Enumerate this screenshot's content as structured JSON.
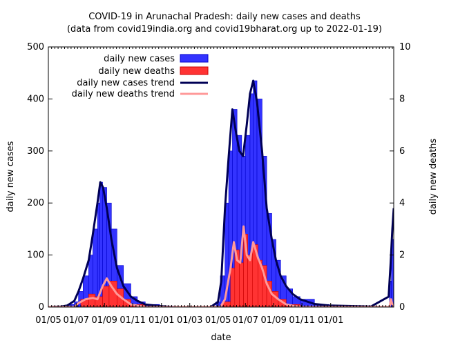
{
  "chart_data": {
    "type": "bar",
    "title": "COVID-19 in Arunachal Pradesh: daily new cases and deaths",
    "subtitle": "(data from covid19india.org and covid19bharat.org up to 2022-01-19)",
    "xlabel": "date",
    "ylabel": "daily new cases",
    "y2label": "daily new deaths",
    "ylim": [
      0,
      500
    ],
    "y2lim": [
      0,
      10
    ],
    "xlim": [
      "2020-01-05",
      "2022-01-19"
    ],
    "yticks": [
      "0",
      "100",
      "200",
      "300",
      "400",
      "500"
    ],
    "y2ticks": [
      "0",
      "2",
      "4",
      "6",
      "8",
      "10"
    ],
    "xticks": [
      {
        "date": "2020-01-05",
        "label": "01/05"
      },
      {
        "date": "2020-03-05",
        "label": "01/07"
      },
      {
        "date": "2020-05-05",
        "label": "01/09"
      },
      {
        "date": "2020-07-05",
        "label": "01/11"
      },
      {
        "date": "2020-09-05",
        "label": "01/01"
      },
      {
        "date": "2020-11-05",
        "label": "01/03"
      },
      {
        "date": "2021-01-05",
        "label": "01/05"
      },
      {
        "date": "2021-03-05",
        "label": "01/07"
      },
      {
        "date": "2021-05-05",
        "label": "01/09"
      },
      {
        "date": "2021-07-05",
        "label": "01/11"
      },
      {
        "date": "2021-09-05",
        "label": "01/01"
      }
    ],
    "legend_position": "top-left",
    "series": [
      {
        "name": "daily new cases",
        "kind": "bar",
        "axis": "y",
        "color": "#0000ff",
        "points": [
          [
            "2020-01-05",
            0
          ],
          [
            "2020-02-01",
            2
          ],
          [
            "2020-02-15",
            5
          ],
          [
            "2020-03-01",
            10
          ],
          [
            "2020-03-10",
            30
          ],
          [
            "2020-03-20",
            60
          ],
          [
            "2020-04-01",
            100
          ],
          [
            "2020-04-10",
            150
          ],
          [
            "2020-04-20",
            200
          ],
          [
            "2020-04-25",
            240
          ],
          [
            "2020-05-01",
            230
          ],
          [
            "2020-05-10",
            200
          ],
          [
            "2020-05-20",
            150
          ],
          [
            "2020-06-01",
            80
          ],
          [
            "2020-06-15",
            45
          ],
          [
            "2020-07-01",
            20
          ],
          [
            "2020-07-15",
            10
          ],
          [
            "2020-08-01",
            5
          ],
          [
            "2020-09-01",
            2
          ],
          [
            "2020-10-01",
            1
          ],
          [
            "2020-12-15",
            1
          ],
          [
            "2021-01-01",
            10
          ],
          [
            "2021-01-10",
            60
          ],
          [
            "2021-01-20",
            200
          ],
          [
            "2021-01-28",
            300
          ],
          [
            "2021-02-05",
            380
          ],
          [
            "2021-02-15",
            330
          ],
          [
            "2021-02-25",
            290
          ],
          [
            "2021-03-05",
            330
          ],
          [
            "2021-03-15",
            410
          ],
          [
            "2021-03-22",
            435
          ],
          [
            "2021-03-30",
            400
          ],
          [
            "2021-04-10",
            290
          ],
          [
            "2021-04-20",
            180
          ],
          [
            "2021-05-01",
            130
          ],
          [
            "2021-05-10",
            90
          ],
          [
            "2021-05-20",
            60
          ],
          [
            "2021-06-01",
            35
          ],
          [
            "2021-06-15",
            20
          ],
          [
            "2021-07-01",
            15
          ],
          [
            "2021-08-01",
            5
          ],
          [
            "2021-09-01",
            3
          ],
          [
            "2021-09-10",
            1
          ],
          [
            "2022-01-10",
            50
          ],
          [
            "2022-01-14",
            130
          ],
          [
            "2022-01-19",
            200
          ]
        ]
      },
      {
        "name": "daily new deaths",
        "kind": "bar",
        "axis": "y2",
        "color": "#ff0000",
        "points": [
          [
            "2020-01-05",
            0
          ],
          [
            "2020-03-01",
            0
          ],
          [
            "2020-03-15",
            0.3
          ],
          [
            "2020-04-01",
            0.5
          ],
          [
            "2020-04-15",
            0.4
          ],
          [
            "2020-05-01",
            0.8
          ],
          [
            "2020-05-15",
            1.0
          ],
          [
            "2020-06-01",
            0.7
          ],
          [
            "2020-06-15",
            0.3
          ],
          [
            "2020-07-01",
            0.1
          ],
          [
            "2020-08-01",
            0
          ],
          [
            "2021-01-15",
            0.2
          ],
          [
            "2021-02-01",
            1.5
          ],
          [
            "2021-02-10",
            2.2
          ],
          [
            "2021-02-20",
            1.7
          ],
          [
            "2021-03-01",
            2.8
          ],
          [
            "2021-03-10",
            2.0
          ],
          [
            "2021-03-20",
            2.4
          ],
          [
            "2021-04-01",
            1.8
          ],
          [
            "2021-04-10",
            1.6
          ],
          [
            "2021-04-20",
            1.0
          ],
          [
            "2021-05-01",
            0.6
          ],
          [
            "2021-05-15",
            0.3
          ],
          [
            "2021-06-01",
            0.1
          ],
          [
            "2021-07-01",
            0
          ],
          [
            "2022-01-19",
            0
          ]
        ]
      },
      {
        "name": "daily new cases trend",
        "kind": "line",
        "axis": "y",
        "color": "#000055",
        "points": [
          [
            "2020-01-05",
            0
          ],
          [
            "2020-02-01",
            1
          ],
          [
            "2020-02-15",
            3
          ],
          [
            "2020-03-01",
            12
          ],
          [
            "2020-03-10",
            30
          ],
          [
            "2020-03-20",
            55
          ],
          [
            "2020-04-01",
            90
          ],
          [
            "2020-04-10",
            140
          ],
          [
            "2020-04-20",
            200
          ],
          [
            "2020-04-26",
            240
          ],
          [
            "2020-05-02",
            230
          ],
          [
            "2020-05-10",
            190
          ],
          [
            "2020-05-20",
            130
          ],
          [
            "2020-06-01",
            75
          ],
          [
            "2020-06-15",
            40
          ],
          [
            "2020-07-01",
            20
          ],
          [
            "2020-07-15",
            12
          ],
          [
            "2020-08-01",
            5
          ],
          [
            "2020-09-01",
            2
          ],
          [
            "2020-10-01",
            0
          ],
          [
            "2020-12-20",
            0
          ],
          [
            "2021-01-05",
            10
          ],
          [
            "2021-01-12",
            50
          ],
          [
            "2021-01-20",
            190
          ],
          [
            "2021-01-28",
            290
          ],
          [
            "2021-02-05",
            380
          ],
          [
            "2021-02-12",
            340
          ],
          [
            "2021-02-20",
            300
          ],
          [
            "2021-02-28",
            290
          ],
          [
            "2021-03-08",
            350
          ],
          [
            "2021-03-15",
            410
          ],
          [
            "2021-03-22",
            435
          ],
          [
            "2021-03-30",
            395
          ],
          [
            "2021-04-10",
            300
          ],
          [
            "2021-04-20",
            190
          ],
          [
            "2021-05-01",
            130
          ],
          [
            "2021-05-10",
            90
          ],
          [
            "2021-05-20",
            60
          ],
          [
            "2021-06-01",
            40
          ],
          [
            "2021-06-15",
            25
          ],
          [
            "2021-07-01",
            15
          ],
          [
            "2021-08-01",
            6
          ],
          [
            "2021-09-01",
            3
          ],
          [
            "2021-12-01",
            1
          ],
          [
            "2022-01-08",
            20
          ],
          [
            "2022-01-12",
            80
          ],
          [
            "2022-01-16",
            150
          ],
          [
            "2022-01-19",
            190
          ]
        ]
      },
      {
        "name": "daily new deaths trend",
        "kind": "line",
        "axis": "y2",
        "color": "#ff9999",
        "points": [
          [
            "2020-01-05",
            0
          ],
          [
            "2020-03-01",
            0
          ],
          [
            "2020-03-10",
            0.15
          ],
          [
            "2020-03-25",
            0.3
          ],
          [
            "2020-04-10",
            0.35
          ],
          [
            "2020-04-20",
            0.3
          ],
          [
            "2020-05-01",
            0.8
          ],
          [
            "2020-05-10",
            1.1
          ],
          [
            "2020-05-20",
            0.8
          ],
          [
            "2020-06-01",
            0.5
          ],
          [
            "2020-06-15",
            0.3
          ],
          [
            "2020-07-01",
            0.1
          ],
          [
            "2020-08-01",
            0
          ],
          [
            "2021-01-10",
            0
          ],
          [
            "2021-01-20",
            0.3
          ],
          [
            "2021-02-01",
            1.5
          ],
          [
            "2021-02-08",
            2.5
          ],
          [
            "2021-02-15",
            1.8
          ],
          [
            "2021-02-22",
            1.7
          ],
          [
            "2021-03-01",
            3.1
          ],
          [
            "2021-03-08",
            2.0
          ],
          [
            "2021-03-15",
            1.8
          ],
          [
            "2021-03-22",
            2.5
          ],
          [
            "2021-04-01",
            1.9
          ],
          [
            "2021-04-10",
            1.5
          ],
          [
            "2021-04-20",
            0.9
          ],
          [
            "2021-05-01",
            0.5
          ],
          [
            "2021-05-15",
            0.3
          ],
          [
            "2021-06-01",
            0.1
          ],
          [
            "2021-07-01",
            0
          ],
          [
            "2022-01-10",
            0
          ],
          [
            "2022-01-13",
            0.3
          ],
          [
            "2022-01-16",
            0.1
          ],
          [
            "2022-01-19",
            0
          ]
        ]
      }
    ]
  }
}
